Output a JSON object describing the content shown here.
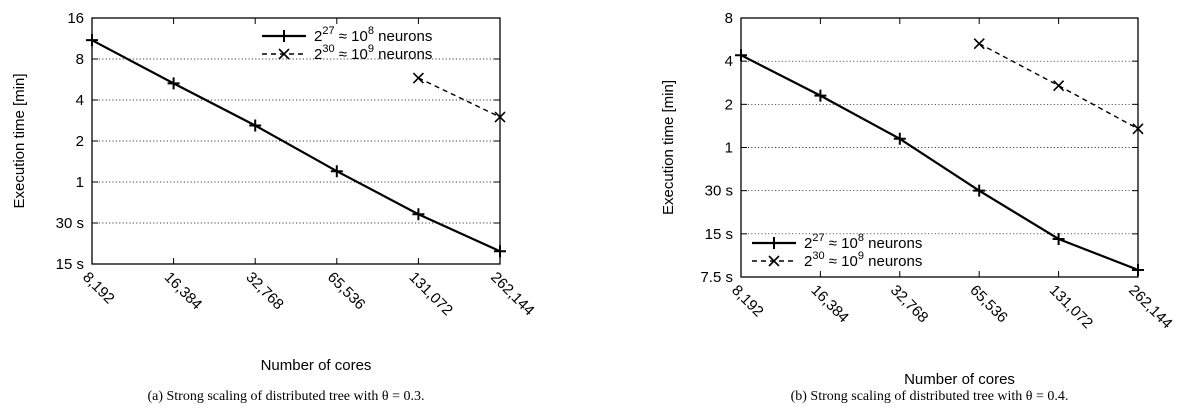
{
  "chart_data": [
    {
      "type": "line",
      "title": "",
      "caption": "(a) Strong scaling of distributed tree with θ = 0.3.",
      "xlabel": "Number of cores",
      "ylabel": "Execution time [min]",
      "x_scale": "log2",
      "y_scale": "log2",
      "categories": [
        "8,192",
        "16,384",
        "32,768",
        "65,536",
        "131,072",
        "262,144"
      ],
      "x": [
        8192,
        16384,
        32768,
        65536,
        131072,
        262144
      ],
      "yticks": [
        0.25,
        0.5,
        1,
        2,
        4,
        8,
        16
      ],
      "ytick_labels": [
        "15 s",
        "30 s",
        "1",
        "2",
        "4",
        "8",
        "16"
      ],
      "ylim": [
        0.25,
        16
      ],
      "grid": "horizontal dotted",
      "legend_position": "top-right",
      "series": [
        {
          "name": "2^27 ≈ 10^8 neurons",
          "legend_base1": "2",
          "legend_exp1": "27",
          "legend_mid": " ≈ 10",
          "legend_exp2": "8",
          "legend_tail": " neurons",
          "marker": "plus",
          "line": "solid",
          "x": [
            8192,
            16384,
            32768,
            65536,
            131072,
            262144
          ],
          "values": [
            11.0,
            5.3,
            2.6,
            1.2,
            0.58,
            0.31
          ]
        },
        {
          "name": "2^30 ≈ 10^9 neurons",
          "legend_base1": "2",
          "legend_exp1": "30",
          "legend_mid": " ≈ 10",
          "legend_exp2": "9",
          "legend_tail": " neurons",
          "marker": "cross",
          "line": "dashed",
          "x": [
            131072,
            262144
          ],
          "values": [
            5.8,
            3.0
          ]
        }
      ]
    },
    {
      "type": "line",
      "title": "",
      "caption": "(b) Strong scaling of distributed tree with θ = 0.4.",
      "xlabel": "Number of cores",
      "ylabel": "Execution time [min]",
      "x_scale": "log2",
      "y_scale": "log2",
      "categories": [
        "8,192",
        "16,384",
        "32,768",
        "65,536",
        "131,072",
        "262,144"
      ],
      "x": [
        8192,
        16384,
        32768,
        65536,
        131072,
        262144
      ],
      "yticks": [
        0.125,
        0.25,
        0.5,
        1,
        2,
        4,
        8
      ],
      "ytick_labels": [
        "7.5 s",
        "15 s",
        "30 s",
        "1",
        "2",
        "4",
        "8"
      ],
      "ylim": [
        0.125,
        8
      ],
      "grid": "horizontal dotted",
      "legend_position": "bottom-left",
      "series": [
        {
          "name": "2^27 ≈ 10^8 neurons",
          "legend_base1": "2",
          "legend_exp1": "27",
          "legend_mid": " ≈ 10",
          "legend_exp2": "8",
          "legend_tail": " neurons",
          "marker": "plus",
          "line": "solid",
          "x": [
            8192,
            16384,
            32768,
            65536,
            131072,
            262144
          ],
          "values": [
            4.4,
            2.3,
            1.15,
            0.5,
            0.23,
            0.14
          ]
        },
        {
          "name": "2^30 ≈ 10^9 neurons",
          "legend_base1": "2",
          "legend_exp1": "30",
          "legend_mid": " ≈ 10",
          "legend_exp2": "9",
          "legend_tail": " neurons",
          "marker": "cross",
          "line": "dashed",
          "x": [
            65536,
            131072,
            262144
          ],
          "values": [
            5.3,
            2.7,
            1.35
          ]
        }
      ]
    }
  ]
}
